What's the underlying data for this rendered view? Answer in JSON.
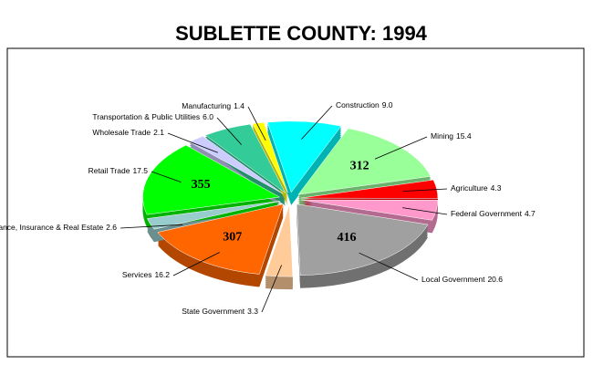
{
  "chart_data": {
    "type": "pie",
    "title": "SUBLETTE COUNTY:  1994",
    "categories": [
      "Construction",
      "Mining",
      "Agriculture",
      "Federal Government",
      "Local Government",
      "State Government",
      "Services",
      "Finance, Insurance & Real Estate",
      "Retail Trade",
      "Wholesale Trade",
      "Transportation & Public Utilities",
      "Manufacturing"
    ],
    "values": [
      9.0,
      15.4,
      4.3,
      4.7,
      20.6,
      3.3,
      16.2,
      2.6,
      17.5,
      2.1,
      6.0,
      1.4
    ],
    "value_labels": [
      "9.0",
      "15.4",
      "4.3",
      "4.7",
      "20.6",
      "3.3",
      "16.2",
      "2.6",
      "17.5",
      "2.1",
      "6.0",
      "1.4"
    ],
    "colors": [
      "#00ffff",
      "#99ff99",
      "#ff0000",
      "#ff99cc",
      "#a0a0a0",
      "#ffcc99",
      "#ff6600",
      "#99cccc",
      "#00ff00",
      "#ccccff",
      "#33cc99",
      "#ffff00"
    ],
    "slice_labels": [
      null,
      312,
      null,
      null,
      416,
      null,
      307,
      null,
      355,
      null,
      null,
      null
    ]
  }
}
